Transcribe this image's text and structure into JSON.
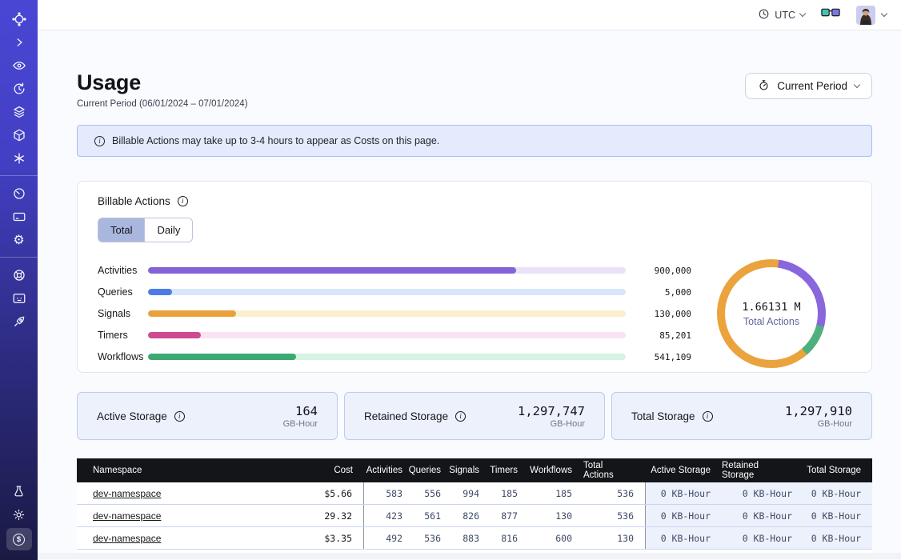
{
  "topbar": {
    "timezone": "UTC"
  },
  "page": {
    "title": "Usage",
    "subtitle": "Current Period (06/01/2024 – 07/01/2024)",
    "period_button": "Current Period"
  },
  "banner": {
    "text": "Billable Actions may take up to 3-4 hours to appear as Costs on this page."
  },
  "billable": {
    "title": "Billable Actions",
    "tabs": [
      {
        "label": "Total",
        "selected": true
      },
      {
        "label": "Daily",
        "selected": false
      }
    ]
  },
  "chart_data": [
    {
      "type": "bar",
      "orientation": "horizontal",
      "title": "Billable Actions (Total)",
      "categories": [
        "Activities",
        "Queries",
        "Signals",
        "Timers",
        "Workflows"
      ],
      "values": [
        900000,
        5000,
        130000,
        85201,
        541109
      ],
      "value_labels": [
        "900,000",
        "5,000",
        "130,000",
        "85,201",
        "541,109"
      ],
      "fill_pct": [
        77,
        5,
        18.5,
        11,
        31
      ],
      "colors": [
        "#8463d8",
        "#4d7ce6",
        "#e9a23b",
        "#ce4a91",
        "#3ea873"
      ],
      "track_colors": [
        "#eae2f9",
        "#d9e5fa",
        "#faf0cf",
        "#fae3f2",
        "#d7f3e2"
      ],
      "legend": false,
      "grid": false
    },
    {
      "type": "pie",
      "subtype": "donut",
      "center_label": "1.66131 M",
      "center_sublabel": "Total Actions",
      "from_deg": 8,
      "segments": [
        {
          "name": "purple",
          "color": "#8a66dd",
          "start_deg": 0,
          "end_deg": 96
        },
        {
          "name": "green",
          "color": "#4fb07e",
          "start_deg": 96,
          "end_deg": 131
        },
        {
          "name": "orange",
          "color": "#eaa33d",
          "start_deg": 131,
          "end_deg": 360
        }
      ]
    }
  ],
  "storage_cards": [
    {
      "label": "Active Storage",
      "value": "164",
      "unit": "GB-Hour"
    },
    {
      "label": "Retained Storage",
      "value": "1,297,747",
      "unit": "GB-Hour"
    },
    {
      "label": "Total Storage",
      "value": "1,297,910",
      "unit": "GB-Hour"
    }
  ],
  "table": {
    "columns": [
      "Namespace",
      "Cost",
      "Activities",
      "Queries",
      "Signals",
      "Timers",
      "Workflows",
      "Total Actions",
      "Active Storage",
      "Retained Storage",
      "Total Storage"
    ],
    "rows": [
      [
        "dev-namespace",
        "$5.66",
        "583",
        "556",
        "994",
        "185",
        "185",
        "536",
        "0 KB-Hour",
        "0 KB-Hour",
        "0 KB-Hour"
      ],
      [
        "dev-namespace",
        "29.32",
        "423",
        "561",
        "826",
        "877",
        "130",
        "536",
        "0 KB-Hour",
        "0 KB-Hour",
        "0 KB-Hour"
      ],
      [
        "dev-namespace",
        "$3.35",
        "492",
        "536",
        "883",
        "816",
        "600",
        "130",
        "0 KB-Hour",
        "0 KB-Hour",
        "0 KB-Hour"
      ]
    ]
  }
}
